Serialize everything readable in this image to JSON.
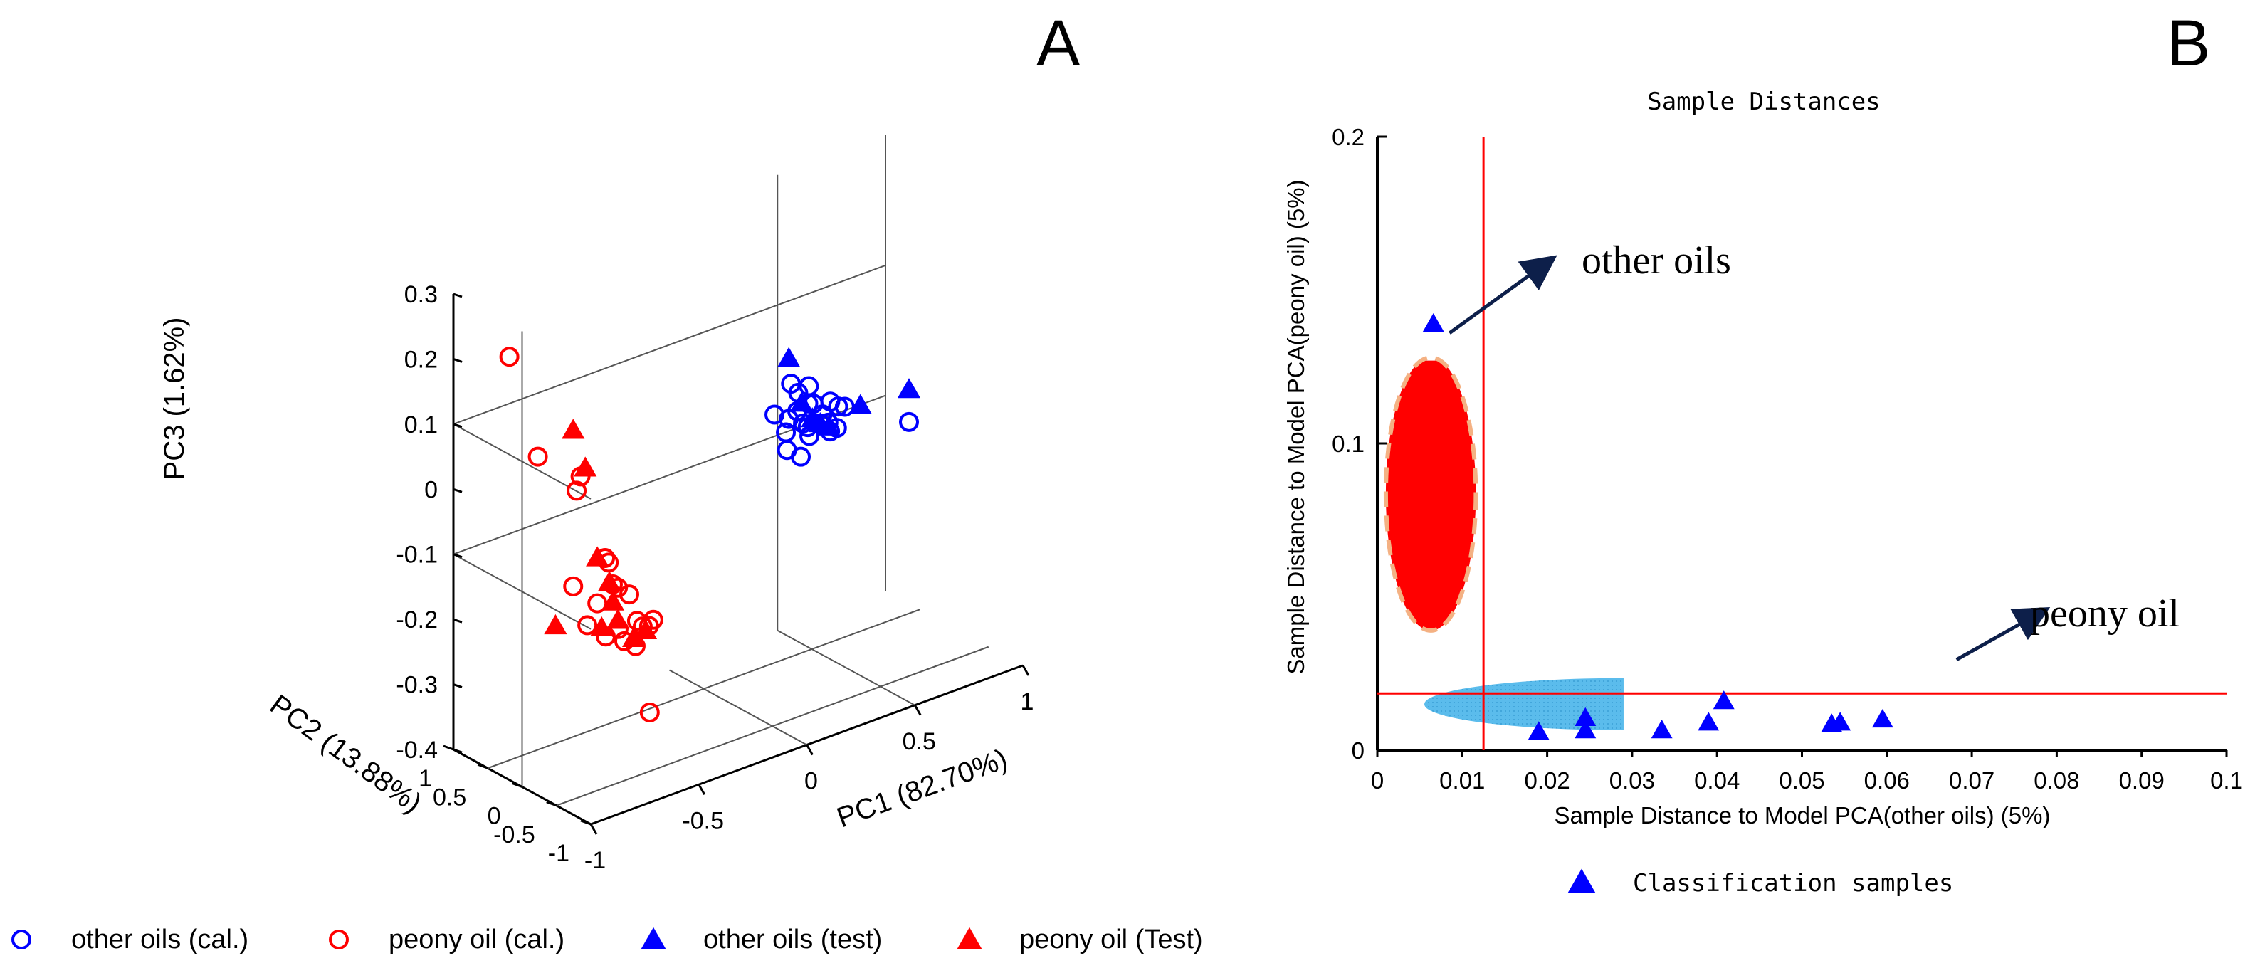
{
  "chart_data": [
    {
      "panel_label": "A",
      "type": "scatter",
      "title": "",
      "axes": {
        "x": {
          "label": "PC1 (82.70%)",
          "range": [
            -1,
            1
          ],
          "ticks": [
            "-1",
            "-0.5",
            "0",
            "0.5",
            "1"
          ]
        },
        "y": {
          "label": "PC2 (13.88%)",
          "range": [
            -1,
            1
          ],
          "ticks": [
            "1",
            "0.5",
            "0",
            "-0.5",
            "-1"
          ]
        },
        "z": {
          "label": "PC3 (1.62%)",
          "range": [
            -0.4,
            0.3
          ],
          "ticks": [
            "0.3",
            "0.2",
            "0.1",
            "0",
            "-0.1",
            "-0.2",
            "-0.3",
            "-0.4"
          ]
        }
      },
      "legend": {
        "position": "bottom",
        "entries": [
          {
            "label": "other oils (cal.)",
            "marker": "circle-open",
            "color": "#0000ff"
          },
          {
            "label": "peony oil (cal.)",
            "marker": "circle-open",
            "color": "#ff0000"
          },
          {
            "label": "other oils (test)",
            "marker": "triangle-filled",
            "color": "#0000ff"
          },
          {
            "label": "peony oil (Test)",
            "marker": "triangle-filled",
            "color": "#ff0000"
          }
        ]
      },
      "series": [
        {
          "name": "other oils (cal.)",
          "color": "#0000ff",
          "marker": "circle-open",
          "points": [
            [
              0.25,
              0.05,
              0.01
            ],
            [
              0.28,
              0.02,
              0.02
            ],
            [
              0.3,
              0.0,
              0.0
            ],
            [
              0.32,
              -0.03,
              -0.02
            ],
            [
              0.35,
              0.08,
              0.02
            ],
            [
              0.38,
              0.0,
              -0.01
            ],
            [
              0.4,
              0.03,
              0.0
            ],
            [
              0.27,
              0.08,
              0.06
            ],
            [
              0.33,
              -0.06,
              0.03
            ],
            [
              0.42,
              -0.02,
              0.02
            ],
            [
              0.45,
              -0.04,
              0.01
            ],
            [
              0.22,
              -0.02,
              -0.03
            ],
            [
              0.36,
              0.12,
              -0.02
            ],
            [
              0.47,
              0.04,
              -0.03
            ],
            [
              0.31,
              0.1,
              0.04
            ],
            [
              0.24,
              0.06,
              -0.01
            ],
            [
              0.4,
              -0.08,
              -0.02
            ],
            [
              0.29,
              0.0,
              -0.05
            ],
            [
              0.5,
              0.02,
              0.0
            ],
            [
              0.2,
              0.1,
              0.02
            ],
            [
              0.34,
              0.04,
              0.05
            ],
            [
              0.44,
              0.07,
              -0.02
            ],
            [
              0.6,
              -0.6,
              0.0
            ]
          ]
        },
        {
          "name": "peony oil (cal.)",
          "color": "#ff0000",
          "marker": "circle-open",
          "points": [
            [
              -0.9,
              0.5,
              0.22
            ],
            [
              -0.8,
              0.4,
              0.06
            ],
            [
              -0.65,
              0.25,
              0.02
            ],
            [
              -0.6,
              0.05,
              -0.1
            ],
            [
              -0.58,
              0.0,
              -0.14
            ],
            [
              -0.55,
              0.02,
              -0.15
            ],
            [
              -0.62,
              0.1,
              -0.17
            ],
            [
              -0.52,
              -0.05,
              -0.16
            ],
            [
              -0.5,
              -0.1,
              -0.2
            ],
            [
              -0.56,
              -0.02,
              -0.21
            ],
            [
              -0.6,
              0.04,
              -0.22
            ],
            [
              -0.48,
              -0.12,
              -0.21
            ],
            [
              -0.54,
              -0.04,
              -0.23
            ],
            [
              -0.5,
              -0.08,
              -0.24
            ],
            [
              -0.46,
              -0.15,
              -0.21
            ],
            [
              -0.66,
              0.12,
              -0.2
            ],
            [
              -0.45,
              -0.18,
              -0.2
            ],
            [
              -0.7,
              0.2,
              -0.14
            ],
            [
              -0.7,
              0.15,
              0.01
            ],
            [
              -0.6,
              -0.6,
              -0.3
            ],
            [
              -0.58,
              0.06,
              -0.11
            ]
          ]
        },
        {
          "name": "other oils (test)",
          "color": "#0000ff",
          "marker": "triangle-filled",
          "points": [
            [
              0.26,
              0.08,
              0.1
            ],
            [
              0.3,
              0.02,
              0.03
            ],
            [
              0.35,
              0.02,
              0.0
            ],
            [
              0.38,
              0.0,
              -0.01
            ],
            [
              0.42,
              0.0,
              -0.02
            ],
            [
              0.55,
              -0.05,
              0.0
            ],
            [
              0.6,
              -0.6,
              0.05
            ]
          ]
        },
        {
          "name": "peony oil (Test)",
          "color": "#ff0000",
          "marker": "triangle-filled",
          "points": [
            [
              -0.7,
              0.2,
              0.1
            ],
            [
              -0.66,
              0.15,
              0.04
            ],
            [
              -0.62,
              0.1,
              -0.1
            ],
            [
              -0.58,
              0.05,
              -0.14
            ],
            [
              -0.57,
              0.03,
              -0.17
            ],
            [
              -0.55,
              0.02,
              -0.2
            ],
            [
              -0.6,
              0.1,
              -0.21
            ],
            [
              -0.5,
              -0.05,
              -0.23
            ],
            [
              -0.46,
              -0.1,
              -0.22
            ],
            [
              -0.75,
              0.3,
              -0.2
            ]
          ]
        }
      ]
    },
    {
      "panel_label": "B",
      "type": "scatter",
      "title": "Sample Distances",
      "xlabel": "Sample Distance to Model PCA(other oils) (5%)",
      "ylabel": "Sample Distance to Model PCA(peony oil) (5%)",
      "xlim": [
        0,
        0.1
      ],
      "ylim": [
        0,
        0.2
      ],
      "xticks": [
        "0",
        "0.01",
        "0.02",
        "0.03",
        "0.04",
        "0.05",
        "0.06",
        "0.07",
        "0.08",
        "0.09",
        "0.1"
      ],
      "yticks": [
        "0",
        "0.1",
        "0.2"
      ],
      "grid": false,
      "thresholds": {
        "x": 0.0125,
        "y": 0.0185,
        "color": "#ff0000"
      },
      "regions": [
        {
          "name": "peony oil region",
          "shape": "ellipse",
          "center": [
            0.0063,
            0.0835
          ],
          "radius": [
            0.0053,
            0.0445
          ],
          "fill": "#ff0000",
          "dashed_outline": "#f4b183",
          "fill_top": 0.127
        },
        {
          "name": "other oils region",
          "shape": "half-ellipse",
          "center": [
            0.029,
            0.015
          ],
          "radius": [
            0.0235,
            0.0085
          ],
          "fill": "#5bbcec",
          "dotted": true
        }
      ],
      "series": [
        {
          "name": "Classification samples",
          "color": "#0000ff",
          "marker": "triangle-filled",
          "points": [
            [
              0.0066,
              0.139
            ],
            [
              0.019,
              0.006
            ],
            [
              0.0245,
              0.0105
            ],
            [
              0.0245,
              0.0065
            ],
            [
              0.0335,
              0.0065
            ],
            [
              0.039,
              0.009
            ],
            [
              0.0408,
              0.016
            ],
            [
              0.0535,
              0.0085
            ],
            [
              0.0545,
              0.009
            ],
            [
              0.0595,
              0.01
            ]
          ]
        }
      ],
      "annotations": [
        {
          "text": "other oils",
          "arrow_from": [
            0.0085,
            0.136
          ],
          "arrow_to": [
            0.0205,
            0.16
          ]
        },
        {
          "text": "peony oil",
          "arrow_from": [
            0.0682,
            0.0295
          ],
          "arrow_to": [
            0.0785,
            0.0455
          ]
        }
      ],
      "legend": {
        "position": "bottom",
        "entries": [
          {
            "label": "Classification samples",
            "marker": "triangle-filled",
            "color": "#0000ff"
          }
        ]
      }
    }
  ]
}
